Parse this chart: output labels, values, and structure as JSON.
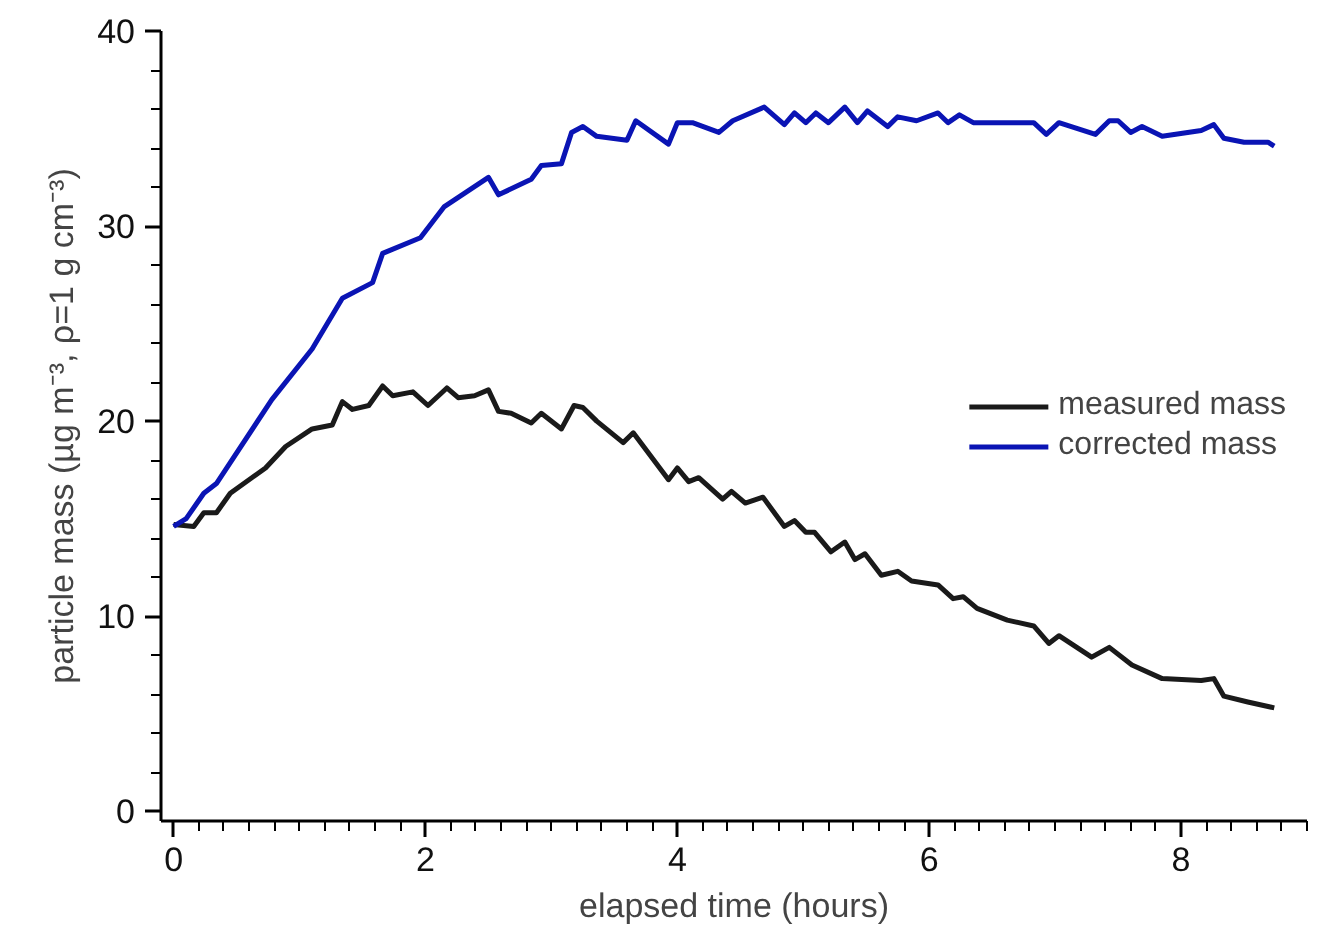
{
  "chart_data": {
    "type": "line",
    "xlabel": "elapsed time (hours)",
    "ylabel": "particle mass (µg m⁻³, ρ=1 g cm⁻³)",
    "xlim": [
      -0.1,
      9.0
    ],
    "ylim": [
      -0.5,
      40
    ],
    "xticks": [
      0,
      2,
      4,
      6,
      8
    ],
    "yticks": [
      0,
      10,
      20,
      30,
      40
    ],
    "grid": false,
    "legend": "right",
    "line_style": "solid",
    "marker": "none",
    "series": [
      {
        "name": "measured mass",
        "color": "#1a1a1a",
        "x": [
          0,
          0.16,
          0.24,
          0.34,
          0.45,
          0.73,
          0.89,
          1.1,
          1.26,
          1.34,
          1.42,
          1.55,
          1.66,
          1.74,
          1.9,
          2.02,
          2.17,
          2.26,
          2.39,
          2.5,
          2.58,
          2.68,
          2.84,
          2.92,
          3.08,
          3.18,
          3.25,
          3.36,
          3.57,
          3.65,
          3.93,
          4.0,
          4.09,
          4.17,
          4.36,
          4.43,
          4.54,
          4.68,
          4.85,
          4.93,
          5.02,
          5.09,
          5.22,
          5.33,
          5.41,
          5.49,
          5.62,
          5.75,
          5.86,
          6.07,
          6.19,
          6.27,
          6.38,
          6.62,
          6.83,
          6.95,
          7.03,
          7.29,
          7.43,
          7.61,
          7.85,
          8.16,
          8.26,
          8.34,
          8.53,
          8.74
        ],
        "values": [
          14.7,
          14.6,
          15.3,
          15.3,
          16.3,
          17.6,
          18.7,
          19.6,
          19.8,
          21.0,
          20.6,
          20.8,
          21.8,
          21.3,
          21.5,
          20.8,
          21.7,
          21.2,
          21.3,
          21.6,
          20.5,
          20.4,
          19.9,
          20.4,
          19.6,
          20.8,
          20.7,
          20.0,
          18.9,
          19.4,
          17.0,
          17.6,
          16.9,
          17.1,
          16.0,
          16.4,
          15.8,
          16.1,
          14.6,
          14.9,
          14.3,
          14.3,
          13.3,
          13.8,
          12.9,
          13.2,
          12.1,
          12.3,
          11.8,
          11.6,
          10.9,
          11.0,
          10.4,
          9.8,
          9.5,
          8.6,
          9.0,
          7.9,
          8.4,
          7.5,
          6.8,
          6.7,
          6.8,
          5.9,
          5.6,
          5.3
        ]
      },
      {
        "name": "corrected mass",
        "color": "#0a14b4",
        "x": [
          0,
          0.1,
          0.24,
          0.34,
          0.78,
          1.1,
          1.34,
          1.58,
          1.66,
          1.96,
          2.15,
          2.5,
          2.58,
          2.84,
          2.92,
          3.08,
          3.16,
          3.25,
          3.36,
          3.6,
          3.67,
          3.93,
          4.0,
          4.12,
          4.33,
          4.44,
          4.69,
          4.85,
          4.93,
          5.02,
          5.1,
          5.2,
          5.33,
          5.43,
          5.51,
          5.67,
          5.75,
          5.9,
          6.07,
          6.15,
          6.24,
          6.35,
          6.64,
          6.83,
          6.93,
          7.03,
          7.32,
          7.43,
          7.5,
          7.6,
          7.69,
          7.85,
          8.16,
          8.26,
          8.34,
          8.5,
          8.69,
          8.74
        ],
        "values": [
          14.6,
          15.0,
          16.3,
          16.8,
          21.1,
          23.7,
          26.3,
          27.1,
          28.6,
          29.4,
          31.0,
          32.5,
          31.6,
          32.4,
          33.1,
          33.2,
          34.8,
          35.1,
          34.6,
          34.4,
          35.4,
          34.2,
          35.3,
          35.3,
          34.8,
          35.4,
          36.1,
          35.2,
          35.8,
          35.3,
          35.8,
          35.3,
          36.1,
          35.3,
          35.9,
          35.1,
          35.6,
          35.4,
          35.8,
          35.3,
          35.7,
          35.3,
          35.3,
          35.3,
          34.7,
          35.3,
          34.7,
          35.4,
          35.4,
          34.8,
          35.1,
          34.6,
          34.9,
          35.2,
          34.5,
          34.3,
          34.3,
          34.1
        ]
      }
    ]
  }
}
